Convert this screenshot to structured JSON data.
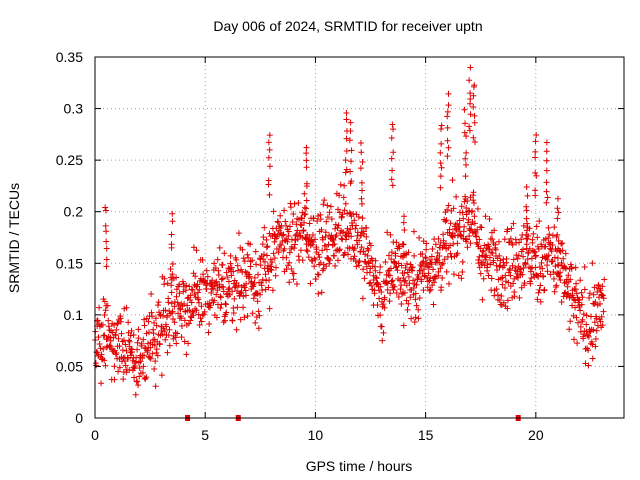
{
  "chart_data": {
    "type": "scatter",
    "title": "Day 006 of 2024, SRMTID for receiver uptn",
    "xlabel": "GPS time / hours",
    "ylabel": "SRMTID / TECUs",
    "xlim": [
      0,
      24
    ],
    "ylim": [
      0,
      0.35
    ],
    "xticks": [
      0,
      5,
      10,
      15,
      20
    ],
    "xtick_labels": [
      "0",
      "5",
      "10",
      "15",
      "20"
    ],
    "yticks": [
      0,
      0.05,
      0.1,
      0.15,
      0.2,
      0.25,
      0.3,
      0.35
    ],
    "ytick_labels": [
      "0",
      "0.05",
      "0.1",
      "0.15",
      "0.2",
      "0.25",
      "0.3",
      "0.35"
    ],
    "grid": true,
    "marker": "plus",
    "color": "#e00000",
    "series": [
      {
        "name": "SRMTID",
        "trend": [
          [
            0.0,
            0.065
          ],
          [
            0.5,
            0.08
          ],
          [
            1.0,
            0.07
          ],
          [
            1.5,
            0.065
          ],
          [
            2.0,
            0.06
          ],
          [
            2.5,
            0.07
          ],
          [
            3.0,
            0.09
          ],
          [
            3.5,
            0.11
          ],
          [
            4.0,
            0.11
          ],
          [
            4.5,
            0.11
          ],
          [
            5.0,
            0.12
          ],
          [
            5.5,
            0.12
          ],
          [
            6.0,
            0.13
          ],
          [
            6.5,
            0.13
          ],
          [
            7.0,
            0.14
          ],
          [
            7.5,
            0.13
          ],
          [
            8.0,
            0.16
          ],
          [
            8.5,
            0.17
          ],
          [
            9.0,
            0.17
          ],
          [
            9.5,
            0.18
          ],
          [
            10.0,
            0.17
          ],
          [
            10.5,
            0.17
          ],
          [
            11.0,
            0.18
          ],
          [
            11.5,
            0.19
          ],
          [
            12.0,
            0.17
          ],
          [
            12.5,
            0.15
          ],
          [
            13.0,
            0.11
          ],
          [
            13.5,
            0.15
          ],
          [
            14.0,
            0.14
          ],
          [
            14.5,
            0.13
          ],
          [
            15.0,
            0.15
          ],
          [
            15.5,
            0.15
          ],
          [
            16.0,
            0.17
          ],
          [
            16.5,
            0.18
          ],
          [
            17.0,
            0.2
          ],
          [
            17.5,
            0.16
          ],
          [
            18.0,
            0.15
          ],
          [
            18.5,
            0.15
          ],
          [
            19.0,
            0.15
          ],
          [
            19.5,
            0.16
          ],
          [
            20.0,
            0.15
          ],
          [
            20.5,
            0.16
          ],
          [
            21.0,
            0.15
          ],
          [
            21.5,
            0.12
          ],
          [
            22.0,
            0.1
          ],
          [
            22.5,
            0.09
          ],
          [
            23.0,
            0.11
          ]
        ],
        "spread": 0.035,
        "x_range": [
          0.0,
          23.1
        ]
      }
    ],
    "peaks": [
      [
        0.5,
        0.21
      ],
      [
        3.5,
        0.2
      ],
      [
        7.9,
        0.28
      ],
      [
        9.6,
        0.27
      ],
      [
        11.4,
        0.3
      ],
      [
        11.6,
        0.29
      ],
      [
        12.1,
        0.27
      ],
      [
        13.5,
        0.29
      ],
      [
        14.0,
        0.2
      ],
      [
        15.7,
        0.29
      ],
      [
        16.0,
        0.32
      ],
      [
        16.8,
        0.3
      ],
      [
        17.0,
        0.34
      ],
      [
        17.2,
        0.33
      ],
      [
        19.6,
        0.23
      ],
      [
        20.0,
        0.28
      ],
      [
        20.5,
        0.27
      ],
      [
        21.0,
        0.22
      ]
    ],
    "axis_markers_x": [
      4.2,
      6.5,
      19.2
    ]
  }
}
